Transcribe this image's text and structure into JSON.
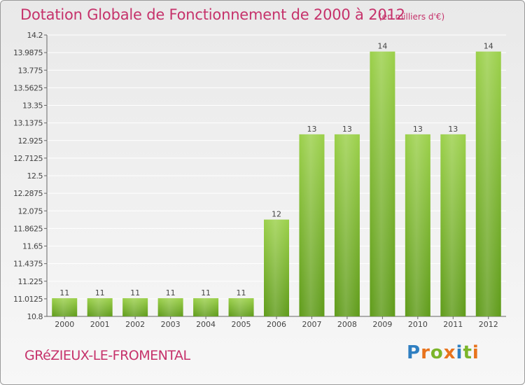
{
  "title": "Dotation Globale de Fonctionnement de 2000 à 2012",
  "subtitle": "(en milliers d'€)",
  "commune": "GRéZIEUX-LE-FROMENTAL",
  "logo": {
    "text": "Proxiti",
    "letters": [
      "P",
      "r",
      "o",
      "x",
      "i",
      "t",
      "i"
    ],
    "colors": [
      "#2f7fc1",
      "#e8731c",
      "#7bb52a",
      "#e8731c",
      "#2f7fc1",
      "#7bb52a",
      "#e8731c"
    ]
  },
  "colors": {
    "bar_top": "#9bd04a",
    "bar_bottom": "#5f9b1a",
    "text": "#c6326b",
    "axis_text": "#444444",
    "grid": "#ffffff"
  },
  "chart_data": {
    "type": "bar",
    "categories": [
      "2000",
      "2001",
      "2002",
      "2003",
      "2004",
      "2005",
      "2006",
      "2007",
      "2008",
      "2009",
      "2010",
      "2011",
      "2012"
    ],
    "values": [
      11,
      11,
      11,
      11,
      11,
      11,
      12,
      13,
      13,
      14,
      13,
      13,
      14
    ],
    "value_labels": [
      "11",
      "11",
      "11",
      "11",
      "11",
      "11",
      "12",
      "13",
      "13",
      "14",
      "13",
      "13",
      "14"
    ],
    "plotted_values": [
      11.02,
      11.02,
      11.02,
      11.02,
      11.02,
      11.02,
      11.97,
      13.0,
      13.0,
      14.0,
      13.0,
      13.0,
      14.0
    ],
    "ylim": [
      10.8,
      14.2
    ],
    "yticks": [
      10.8,
      11.0125,
      11.225,
      11.4375,
      11.65,
      11.8625,
      12.075,
      12.2875,
      12.5,
      12.7125,
      12.925,
      13.1375,
      13.35,
      13.5625,
      13.775,
      13.9875,
      14.2
    ],
    "ytick_labels": [
      "10.8",
      "11.0125",
      "11.225",
      "11.4375",
      "11.65",
      "11.8625",
      "12.075",
      "12.2875",
      "12.5",
      "12.7125",
      "12.925",
      "13.1375",
      "13.35",
      "13.5625",
      "13.775",
      "13.9875",
      "14.2"
    ],
    "grid": true,
    "xlabel": "",
    "ylabel": ""
  }
}
